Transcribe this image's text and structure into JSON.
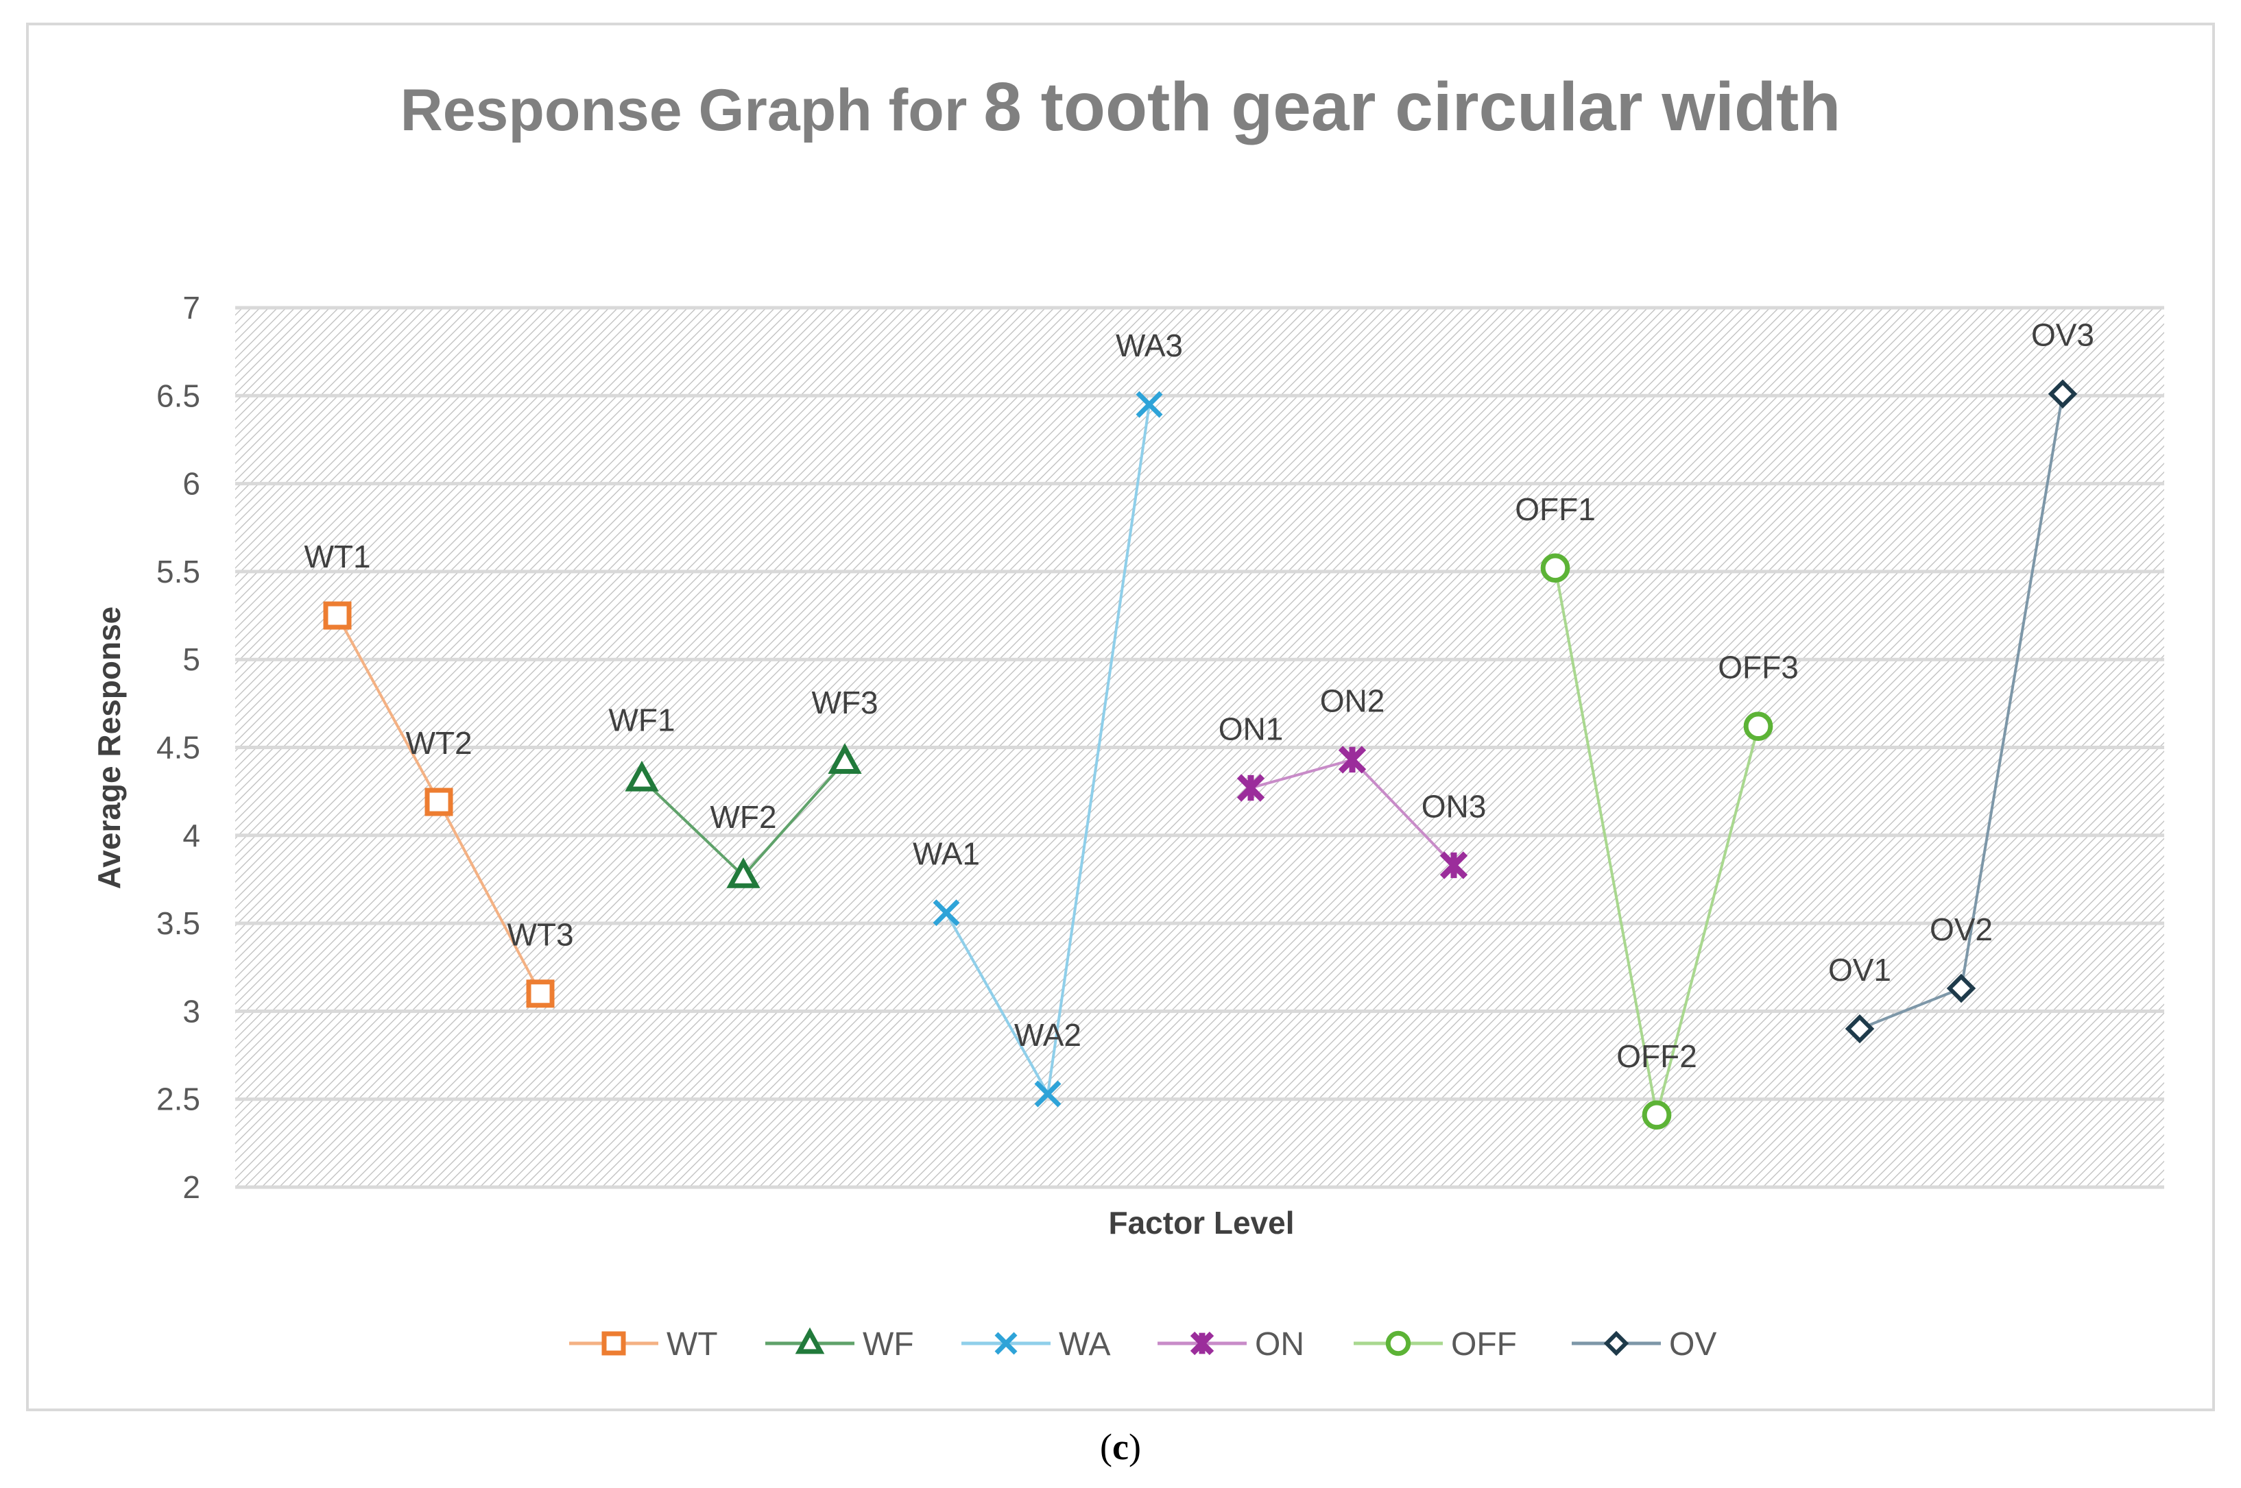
{
  "caption": {
    "open": "(",
    "letter": "c",
    "close": ")"
  },
  "chart_data": {
    "type": "line",
    "title_part1": "Response Graph for ",
    "title_part2": "8 tooth gear circular width",
    "xlabel": "Factor Level",
    "ylabel": "Average Response",
    "ylim": [
      2,
      7
    ],
    "yticks": [
      "2",
      "2.5",
      "3",
      "3.5",
      "4",
      "4.5",
      "5",
      "5.5",
      "6",
      "6.5",
      "7"
    ],
    "grid": true,
    "legend_position": "bottom",
    "series": [
      {
        "name": "WT",
        "color": "#ED7D31",
        "line_color": "#F4B183",
        "marker": "square",
        "labels": [
          "WT1",
          "WT2",
          "WT3"
        ],
        "x": [
          1,
          2,
          3
        ],
        "values": [
          5.25,
          4.19,
          3.1
        ]
      },
      {
        "name": "WF",
        "color": "#217A3B",
        "line_color": "#5FA26A",
        "marker": "triangle",
        "labels": [
          "WF1",
          "WF2",
          "WF3"
        ],
        "x": [
          4,
          5,
          6
        ],
        "values": [
          4.32,
          3.77,
          4.42
        ]
      },
      {
        "name": "WA",
        "color": "#2EA3D8",
        "line_color": "#8FCFEA",
        "marker": "x",
        "labels": [
          "WA1",
          "WA2",
          "WA3"
        ],
        "x": [
          7,
          8,
          9
        ],
        "values": [
          3.56,
          2.53,
          6.45
        ]
      },
      {
        "name": "ON",
        "color": "#9B2D9B",
        "line_color": "#C88BC8",
        "marker": "star",
        "labels": [
          "ON1",
          "ON2",
          "ON3"
        ],
        "x": [
          10,
          11,
          12
        ],
        "values": [
          4.27,
          4.43,
          3.83
        ]
      },
      {
        "name": "OFF",
        "color": "#5CB336",
        "line_color": "#A9D88F",
        "marker": "circle",
        "labels": [
          "OFF1",
          "OFF2",
          "OFF3"
        ],
        "x": [
          13,
          14,
          15
        ],
        "values": [
          5.52,
          2.41,
          4.62
        ]
      },
      {
        "name": "OV",
        "color": "#1E3A4A",
        "line_color": "#7D97A8",
        "marker": "diamond",
        "labels": [
          "OV1",
          "OV2",
          "OV3"
        ],
        "x": [
          16,
          17,
          18
        ],
        "values": [
          2.9,
          3.13,
          6.51
        ]
      }
    ]
  }
}
